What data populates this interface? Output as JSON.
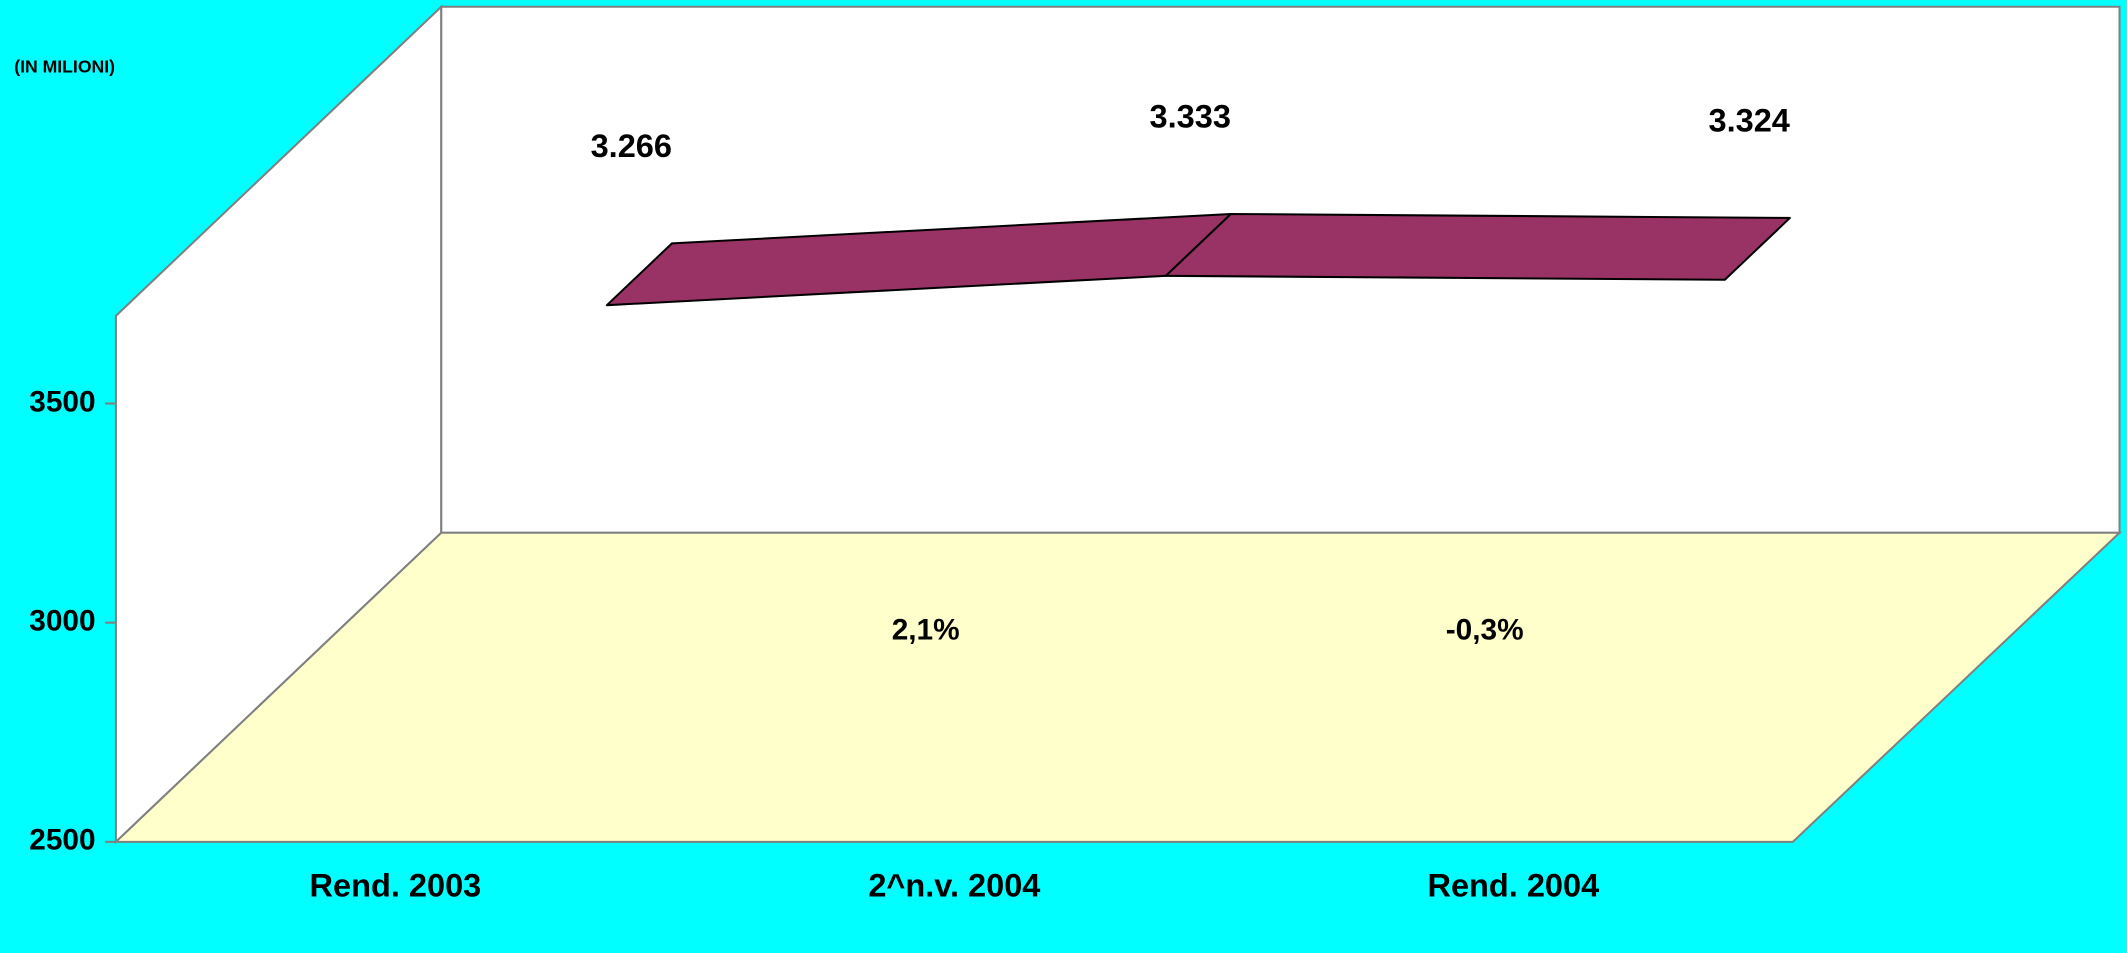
{
  "chart_data": {
    "type": "line3d",
    "ylabel": "(IN MILIONI)",
    "categories": [
      "Rend. 2003",
      "2^n.v. 2004",
      "Rend. 2004"
    ],
    "series": [
      {
        "name": null,
        "color": "#993366",
        "values": [
          3266,
          3333,
          3324
        ],
        "value_labels": [
          "3.266",
          "3.333",
          "3.324"
        ]
      }
    ],
    "annotations": [
      "2,1%",
      "-0,3%"
    ],
    "ylim": [
      2500,
      3700
    ],
    "yticks": [
      2500,
      3000,
      3500
    ],
    "wall_color": "#ffffff",
    "floor_color": "#ffffcc",
    "background": "#00ffff"
  }
}
